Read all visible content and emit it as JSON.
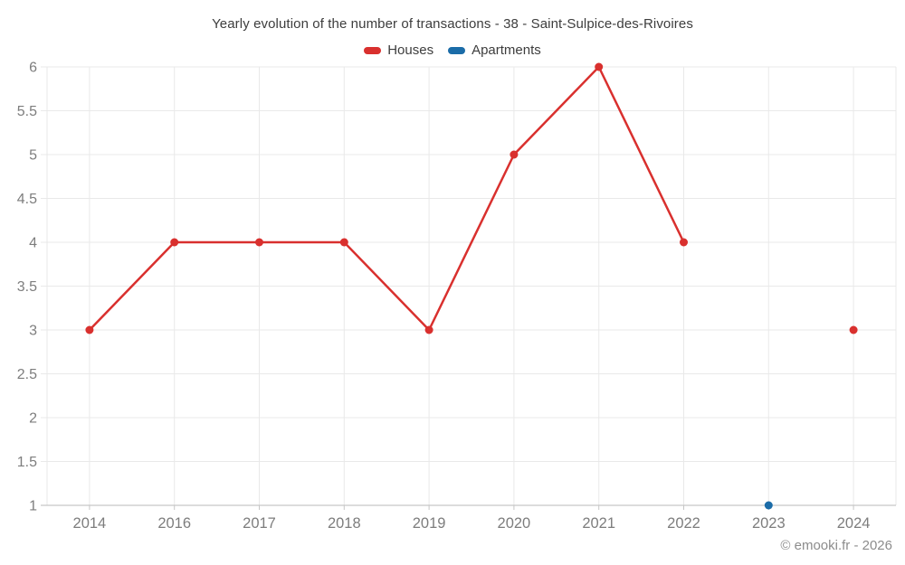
{
  "chart_data": {
    "type": "line",
    "title": "Yearly evolution of the number of transactions - 38 - Saint-Sulpice-des-Rivoires",
    "categories": [
      "2014",
      "2016",
      "2017",
      "2018",
      "2019",
      "2020",
      "2021",
      "2022",
      "2023",
      "2024"
    ],
    "series": [
      {
        "name": "Houses",
        "color": "#d9302e",
        "values": [
          3,
          4,
          4,
          4,
          3,
          5,
          6,
          4,
          null,
          3
        ]
      },
      {
        "name": "Apartments",
        "color": "#1b6ca8",
        "values": [
          null,
          null,
          null,
          null,
          null,
          null,
          null,
          null,
          1,
          null
        ]
      }
    ],
    "ylim": [
      1,
      6
    ],
    "y_ticks": [
      1,
      1.5,
      2,
      2.5,
      3,
      3.5,
      4,
      4.5,
      5,
      5.5,
      6
    ],
    "grid": "on",
    "legend_position": "top",
    "xlabel": "",
    "ylabel": ""
  },
  "watermark": "© emooki.fr - 2026"
}
